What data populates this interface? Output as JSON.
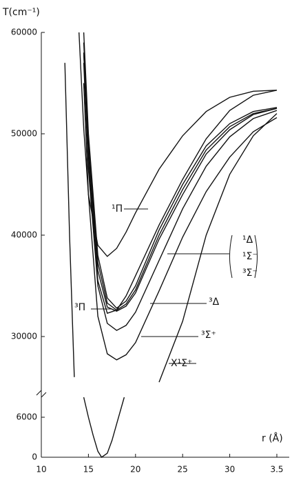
{
  "chart_data": [
    {
      "type": "line",
      "y_label": "T(cm⁻¹)",
      "x": [
        1.2,
        1.25,
        1.3,
        1.35,
        1.4,
        1.45,
        1.5,
        1.6,
        1.7,
        1.8,
        1.9,
        2.0,
        2.25,
        2.5,
        2.75,
        3.0,
        3.25,
        3.5
      ],
      "xlim": [
        1.0,
        3.5
      ],
      "ylim": [
        24800,
        60000
      ],
      "yticks": [
        30000,
        40000,
        50000,
        60000
      ],
      "series": [
        {
          "name": "X¹Σ⁺",
          "color": "#111111",
          "values": [
            null,
            57000,
            40000,
            26000,
            null,
            null,
            null,
            null,
            null,
            null,
            null,
            null,
            25500,
            31500,
            40000,
            46000,
            49800,
            52000
          ]
        },
        {
          "name": "¹Π",
          "color": "#111111",
          "values": [
            null,
            null,
            null,
            null,
            60000,
            50500,
            44000,
            39000,
            37900,
            38700,
            40300,
            42200,
            46500,
            49800,
            52200,
            53600,
            54200,
            54300
          ]
        },
        {
          "name": "³Π",
          "color": "#111111",
          "values": [
            null,
            null,
            null,
            null,
            null,
            58000,
            47000,
            35500,
            32300,
            32600,
            34000,
            36000,
            41000,
            45500,
            49500,
            52300,
            53800,
            54300
          ]
        },
        {
          "name": "¹Δ",
          "color": "#111111",
          "values": [
            null,
            null,
            null,
            null,
            null,
            60000,
            50000,
            38000,
            33800,
            32800,
            33500,
            35000,
            40500,
            45000,
            48800,
            51000,
            52200,
            52600
          ]
        },
        {
          "name": "¹Σ⁻",
          "color": "#111111",
          "values": [
            null,
            null,
            null,
            null,
            null,
            59000,
            49000,
            37300,
            33300,
            32600,
            33200,
            34600,
            40000,
            44500,
            48400,
            50700,
            52000,
            52500
          ]
        },
        {
          "name": "³Σ⁻",
          "color": "#111111",
          "values": [
            null,
            null,
            null,
            null,
            null,
            58000,
            48000,
            36500,
            32900,
            32500,
            33000,
            34300,
            39600,
            44000,
            48000,
            50400,
            51900,
            52500
          ]
        },
        {
          "name": "³Δ",
          "color": "#111111",
          "values": [
            null,
            null,
            null,
            null,
            null,
            57000,
            46500,
            35000,
            31300,
            30600,
            31100,
            32400,
            37500,
            42600,
            46800,
            49700,
            51500,
            52300
          ]
        },
        {
          "name": "³Σ⁺",
          "color": "#111111",
          "values": [
            null,
            null,
            null,
            null,
            null,
            55000,
            44000,
            32000,
            28300,
            27700,
            28200,
            29400,
            34500,
            39800,
            44300,
            47700,
            50200,
            51600
          ]
        }
      ]
    },
    {
      "type": "line",
      "x_label": "r (Å)",
      "x": [
        1.45,
        1.5,
        1.55,
        1.6,
        1.64,
        1.7,
        1.75,
        1.8,
        1.88
      ],
      "xlim": [
        1.0,
        3.5
      ],
      "ylim": [
        0,
        9000
      ],
      "yticks": [
        0,
        6000
      ],
      "xticks": [
        {
          "value": 1.0,
          "label": "10"
        },
        {
          "value": 1.5,
          "label": "15"
        },
        {
          "value": 2.0,
          "label": "20"
        },
        {
          "value": 2.5,
          "label": "25"
        },
        {
          "value": 3.0,
          "label": "30"
        },
        3.5
      ],
      "series": [
        {
          "color": "#111111",
          "values": [
            9000,
            6000,
            3300,
            900,
            0,
            600,
            2500,
            5000,
            9000
          ]
        }
      ]
    }
  ]
}
